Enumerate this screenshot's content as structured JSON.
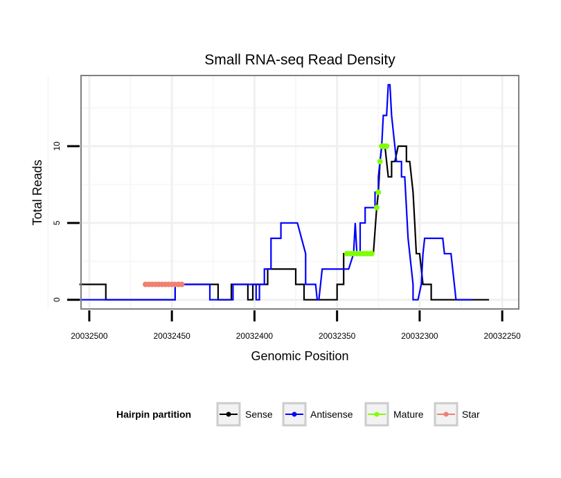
{
  "chart_data": {
    "type": "line",
    "title": "Small RNA-seq Read Density",
    "xlabel": "Genomic Position",
    "ylabel": "Total Reads",
    "xlim": [
      20032505,
      20032240
    ],
    "ylim": [
      -0.6,
      14.6
    ],
    "x_reversed": true,
    "grid": true,
    "x_ticks": [
      20032500,
      20032450,
      20032400,
      20032350,
      20032300,
      20032250
    ],
    "x_tick_labels": [
      "20032500",
      "20032450",
      "20032400",
      "20032350",
      "20032300",
      "20032250"
    ],
    "y_ticks": [
      0,
      5,
      10
    ],
    "y_tick_labels": [
      "0",
      "5",
      "10"
    ],
    "legend": {
      "title": "Hairpin partition",
      "position": "bottom",
      "entries": [
        {
          "label": "Sense",
          "color": "#000000"
        },
        {
          "label": "Antisense",
          "color": "#0000ff"
        },
        {
          "label": "Mature",
          "color": "#7fff00"
        },
        {
          "label": "Star",
          "color": "#f08070"
        }
      ]
    },
    "series": [
      {
        "name": "Sense",
        "color": "#000000",
        "style": "line",
        "points": [
          [
            20032506,
            1
          ],
          [
            20032490,
            1
          ],
          [
            20032490,
            0
          ],
          [
            20032448,
            0
          ],
          [
            20032448,
            1
          ],
          [
            20032422,
            1
          ],
          [
            20032422,
            0
          ],
          [
            20032414,
            0
          ],
          [
            20032414,
            1
          ],
          [
            20032404,
            1
          ],
          [
            20032404,
            0
          ],
          [
            20032401,
            0
          ],
          [
            20032401,
            1
          ],
          [
            20032392,
            1
          ],
          [
            20032392,
            2
          ],
          [
            20032375,
            2
          ],
          [
            20032375,
            1
          ],
          [
            20032370,
            1
          ],
          [
            20032370,
            0
          ],
          [
            20032350,
            0
          ],
          [
            20032350,
            1
          ],
          [
            20032346,
            1
          ],
          [
            20032346,
            3
          ],
          [
            20032328,
            3
          ],
          [
            20032326,
            6
          ],
          [
            20032325,
            7
          ],
          [
            20032324,
            9
          ],
          [
            20032323,
            10
          ],
          [
            20032321,
            10
          ],
          [
            20032320,
            9
          ],
          [
            20032319,
            8
          ],
          [
            20032317,
            8
          ],
          [
            20032317,
            9
          ],
          [
            20032315,
            9
          ],
          [
            20032315,
            9
          ],
          [
            20032313,
            10
          ],
          [
            20032308,
            10
          ],
          [
            20032308,
            9
          ],
          [
            20032306,
            9
          ],
          [
            20032305,
            8
          ],
          [
            20032304,
            7
          ],
          [
            20032303,
            5
          ],
          [
            20032302,
            3
          ],
          [
            20032300,
            3
          ],
          [
            20032299,
            2
          ],
          [
            20032298,
            1
          ],
          [
            20032293,
            1
          ],
          [
            20032293,
            0
          ],
          [
            20032278,
            0
          ],
          [
            20032276,
            0
          ],
          [
            20032270,
            0
          ],
          [
            20032270,
            0
          ],
          [
            20032258,
            0
          ]
        ]
      },
      {
        "name": "Antisense",
        "color": "#0000ff",
        "style": "line",
        "points": [
          [
            20032506,
            0
          ],
          [
            20032490,
            0
          ],
          [
            20032490,
            0
          ],
          [
            20032470,
            0
          ],
          [
            20032448,
            0
          ],
          [
            20032448,
            1
          ],
          [
            20032427,
            1
          ],
          [
            20032427,
            0
          ],
          [
            20032413,
            0
          ],
          [
            20032413,
            1
          ],
          [
            20032399,
            1
          ],
          [
            20032399,
            0
          ],
          [
            20032397,
            0
          ],
          [
            20032397,
            1
          ],
          [
            20032394,
            1
          ],
          [
            20032394,
            2
          ],
          [
            20032390,
            2
          ],
          [
            20032390,
            4
          ],
          [
            20032384,
            4
          ],
          [
            20032384,
            5
          ],
          [
            20032374,
            5
          ],
          [
            20032369,
            3
          ],
          [
            20032369,
            1
          ],
          [
            20032363,
            1
          ],
          [
            20032362,
            0
          ],
          [
            20032361,
            0
          ],
          [
            20032359,
            2
          ],
          [
            20032343,
            2
          ],
          [
            20032340,
            3
          ],
          [
            20032339,
            5
          ],
          [
            20032338,
            3
          ],
          [
            20032336,
            3
          ],
          [
            20032336,
            5
          ],
          [
            20032333,
            5
          ],
          [
            20032333,
            6
          ],
          [
            20032327,
            6
          ],
          [
            20032327,
            7
          ],
          [
            20032325,
            7
          ],
          [
            20032325,
            8
          ],
          [
            20032323,
            10
          ],
          [
            20032322,
            12
          ],
          [
            20032320,
            12
          ],
          [
            20032319,
            14
          ],
          [
            20032318,
            14
          ],
          [
            20032317,
            12
          ],
          [
            20032315,
            10
          ],
          [
            20032314,
            9
          ],
          [
            20032311,
            9
          ],
          [
            20032311,
            8
          ],
          [
            20032309,
            8
          ],
          [
            20032307,
            4
          ],
          [
            20032306,
            3
          ],
          [
            20032304,
            1
          ],
          [
            20032304,
            0
          ],
          [
            20032301,
            0
          ],
          [
            20032299,
            1
          ],
          [
            20032298,
            3
          ],
          [
            20032297,
            4
          ],
          [
            20032286,
            4
          ],
          [
            20032285,
            3
          ],
          [
            20032281,
            3
          ],
          [
            20032280,
            2
          ],
          [
            20032280,
            2
          ],
          [
            20032278,
            0
          ],
          [
            20032276,
            0
          ],
          [
            20032268,
            0
          ]
        ]
      },
      {
        "name": "Mature",
        "color": "#7fff00",
        "style": "points",
        "points": [
          [
            20032344,
            3
          ],
          [
            20032342,
            3
          ],
          [
            20032340,
            3
          ],
          [
            20032338,
            3
          ],
          [
            20032336,
            3
          ],
          [
            20032334,
            3
          ],
          [
            20032332,
            3
          ],
          [
            20032330,
            3
          ],
          [
            20032329,
            3
          ],
          [
            20032326,
            6
          ],
          [
            20032325,
            7
          ],
          [
            20032324,
            9
          ],
          [
            20032323,
            10
          ],
          [
            20032322,
            10
          ],
          [
            20032321,
            10
          ],
          [
            20032320,
            10
          ]
        ]
      },
      {
        "name": "Star",
        "color": "#f08070",
        "style": "points",
        "points": [
          [
            20032466,
            1
          ],
          [
            20032464,
            1
          ],
          [
            20032462,
            1
          ],
          [
            20032460,
            1
          ],
          [
            20032458,
            1
          ],
          [
            20032456,
            1
          ],
          [
            20032454,
            1
          ],
          [
            20032452,
            1
          ],
          [
            20032450,
            1
          ],
          [
            20032448,
            1
          ],
          [
            20032446,
            1
          ],
          [
            20032444,
            1
          ]
        ]
      }
    ]
  }
}
